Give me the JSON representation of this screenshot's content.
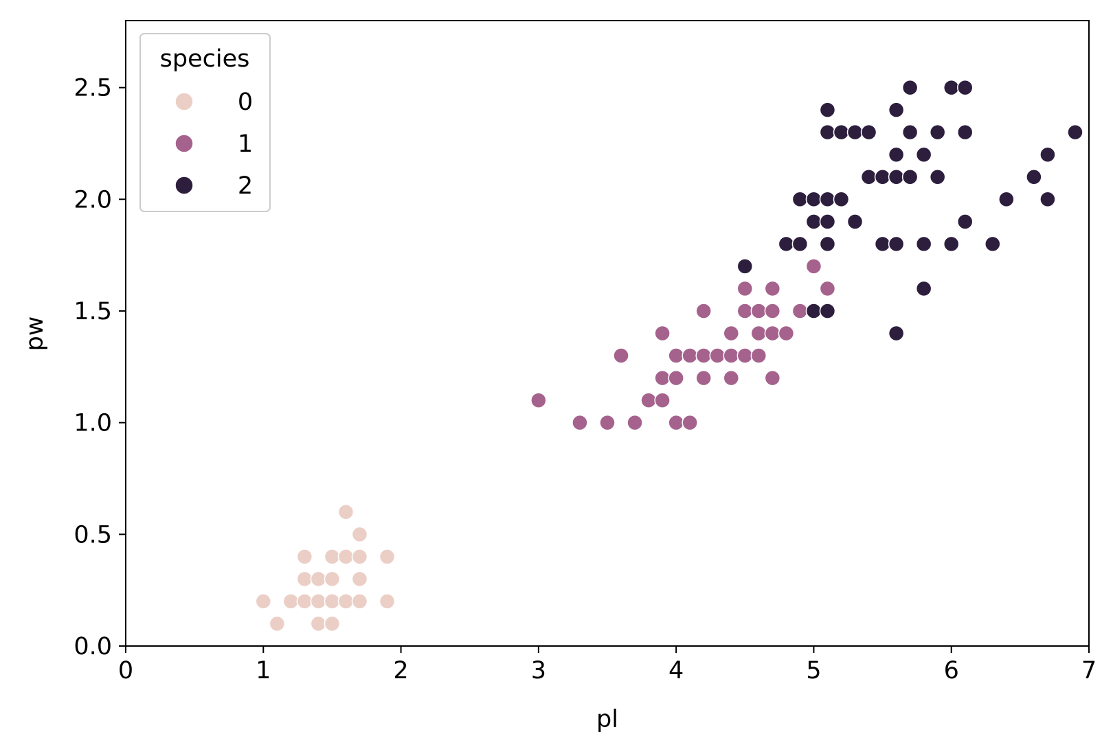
{
  "chart_data": {
    "type": "scatter",
    "xlabel": "pl",
    "ylabel": "pw",
    "xlim": [
      0,
      7
    ],
    "ylim": [
      0,
      2.8
    ],
    "xticks": [
      "0",
      "1",
      "2",
      "3",
      "4",
      "5",
      "6",
      "7"
    ],
    "yticks": [
      "0.0",
      "0.5",
      "1.0",
      "1.5",
      "2.0",
      "2.5"
    ],
    "grid": false,
    "legend": {
      "title": "species",
      "placement": "top-left"
    },
    "series": [
      {
        "name": "0",
        "color": "#ebcfc7",
        "points": [
          [
            1.0,
            0.2
          ],
          [
            1.1,
            0.1
          ],
          [
            1.2,
            0.2
          ],
          [
            1.3,
            0.2
          ],
          [
            1.3,
            0.3
          ],
          [
            1.3,
            0.4
          ],
          [
            1.4,
            0.1
          ],
          [
            1.4,
            0.2
          ],
          [
            1.4,
            0.3
          ],
          [
            1.5,
            0.1
          ],
          [
            1.5,
            0.2
          ],
          [
            1.5,
            0.3
          ],
          [
            1.5,
            0.4
          ],
          [
            1.6,
            0.2
          ],
          [
            1.6,
            0.4
          ],
          [
            1.6,
            0.6
          ],
          [
            1.7,
            0.2
          ],
          [
            1.7,
            0.3
          ],
          [
            1.7,
            0.4
          ],
          [
            1.7,
            0.5
          ],
          [
            1.9,
            0.2
          ],
          [
            1.9,
            0.4
          ]
        ]
      },
      {
        "name": "1",
        "color": "#a5628d",
        "points": [
          [
            3.0,
            1.1
          ],
          [
            3.3,
            1.0
          ],
          [
            3.5,
            1.0
          ],
          [
            3.6,
            1.3
          ],
          [
            3.7,
            1.0
          ],
          [
            3.8,
            1.1
          ],
          [
            3.9,
            1.1
          ],
          [
            3.9,
            1.2
          ],
          [
            3.9,
            1.4
          ],
          [
            4.0,
            1.0
          ],
          [
            4.0,
            1.2
          ],
          [
            4.0,
            1.3
          ],
          [
            4.1,
            1.0
          ],
          [
            4.1,
            1.3
          ],
          [
            4.2,
            1.2
          ],
          [
            4.2,
            1.3
          ],
          [
            4.2,
            1.5
          ],
          [
            4.3,
            1.3
          ],
          [
            4.4,
            1.2
          ],
          [
            4.4,
            1.3
          ],
          [
            4.4,
            1.4
          ],
          [
            4.5,
            1.3
          ],
          [
            4.5,
            1.5
          ],
          [
            4.5,
            1.6
          ],
          [
            4.6,
            1.3
          ],
          [
            4.6,
            1.4
          ],
          [
            4.6,
            1.5
          ],
          [
            4.7,
            1.2
          ],
          [
            4.7,
            1.4
          ],
          [
            4.7,
            1.5
          ],
          [
            4.7,
            1.6
          ],
          [
            4.8,
            1.4
          ],
          [
            4.9,
            1.5
          ],
          [
            5.0,
            1.7
          ],
          [
            5.1,
            1.6
          ]
        ]
      },
      {
        "name": "2",
        "color": "#2d1e3e",
        "points": [
          [
            4.5,
            1.7
          ],
          [
            4.8,
            1.8
          ],
          [
            4.9,
            1.8
          ],
          [
            4.9,
            2.0
          ],
          [
            5.0,
            1.5
          ],
          [
            5.0,
            1.9
          ],
          [
            5.0,
            2.0
          ],
          [
            5.1,
            1.5
          ],
          [
            5.1,
            1.8
          ],
          [
            5.1,
            1.9
          ],
          [
            5.1,
            2.0
          ],
          [
            5.1,
            2.3
          ],
          [
            5.1,
            2.4
          ],
          [
            5.2,
            2.0
          ],
          [
            5.2,
            2.3
          ],
          [
            5.3,
            1.9
          ],
          [
            5.3,
            2.3
          ],
          [
            5.4,
            2.1
          ],
          [
            5.4,
            2.3
          ],
          [
            5.5,
            1.8
          ],
          [
            5.5,
            2.1
          ],
          [
            5.6,
            1.4
          ],
          [
            5.6,
            1.8
          ],
          [
            5.6,
            2.1
          ],
          [
            5.6,
            2.2
          ],
          [
            5.6,
            2.4
          ],
          [
            5.7,
            2.1
          ],
          [
            5.7,
            2.3
          ],
          [
            5.7,
            2.5
          ],
          [
            5.8,
            1.6
          ],
          [
            5.8,
            1.8
          ],
          [
            5.8,
            2.2
          ],
          [
            5.9,
            2.1
          ],
          [
            5.9,
            2.3
          ],
          [
            6.0,
            1.8
          ],
          [
            6.0,
            2.5
          ],
          [
            6.1,
            1.9
          ],
          [
            6.1,
            2.3
          ],
          [
            6.1,
            2.5
          ],
          [
            6.3,
            1.8
          ],
          [
            6.4,
            2.0
          ],
          [
            6.6,
            2.1
          ],
          [
            6.7,
            2.0
          ],
          [
            6.7,
            2.2
          ],
          [
            6.9,
            2.3
          ]
        ]
      }
    ]
  }
}
